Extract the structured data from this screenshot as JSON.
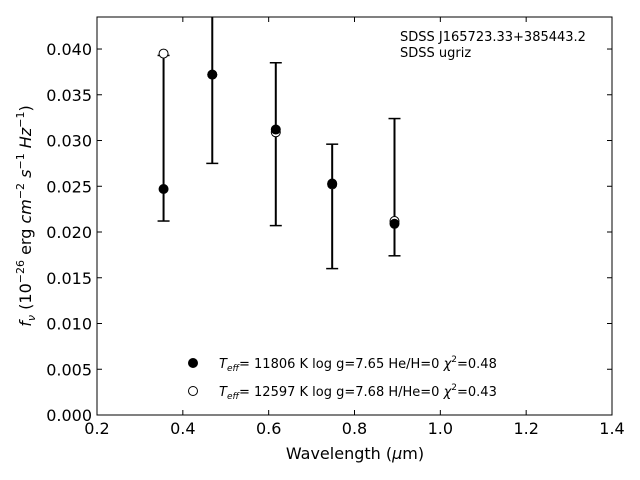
{
  "chart_data": {
    "type": "scatter",
    "xlabel": "Wavelength (μm)",
    "ylabel": "f_ν (10^-26 erg cm^-2 s^-1 Hz^-1)",
    "xlim": [
      0.2,
      1.4
    ],
    "ylim": [
      0.0,
      0.0435
    ],
    "xticks": [
      "0.2",
      "0.4",
      "0.6",
      "0.8",
      "1.0",
      "1.2",
      "1.4"
    ],
    "yticks": [
      "0.000",
      "0.005",
      "0.010",
      "0.015",
      "0.020",
      "0.025",
      "0.030",
      "0.035",
      "0.040"
    ],
    "annotations": [
      "SDSS J165723.33+385443.2",
      "SDSS ugriz"
    ],
    "observations": {
      "x": [
        0.3551,
        0.4686,
        0.6166,
        0.748,
        0.8932
      ],
      "lower": [
        0.0212,
        0.0275,
        0.0207,
        0.016,
        0.0174
      ],
      "upper": [
        0.0393,
        0.0435,
        0.0385,
        0.0296,
        0.0324
      ]
    },
    "series": [
      {
        "name": "Teff= 11806 K  log g=7.65  He/H=0  χ2=0.48",
        "marker": "filled-circle",
        "x": [
          0.3551,
          0.4686,
          0.6166,
          0.748,
          0.8932
        ],
        "y": [
          0.0247,
          0.0372,
          0.0312,
          0.0253,
          0.0209
        ]
      },
      {
        "name": "Teff= 12597 K  log g=7.68  H/He=0  χ2=0.43",
        "marker": "open-circle",
        "x": [
          0.3551,
          0.4686,
          0.6166,
          0.748,
          0.8932
        ],
        "y": [
          0.0395,
          0.0372,
          0.0309,
          0.0252,
          0.0212
        ]
      }
    ],
    "legend_position": "lower-center",
    "grid": false
  }
}
